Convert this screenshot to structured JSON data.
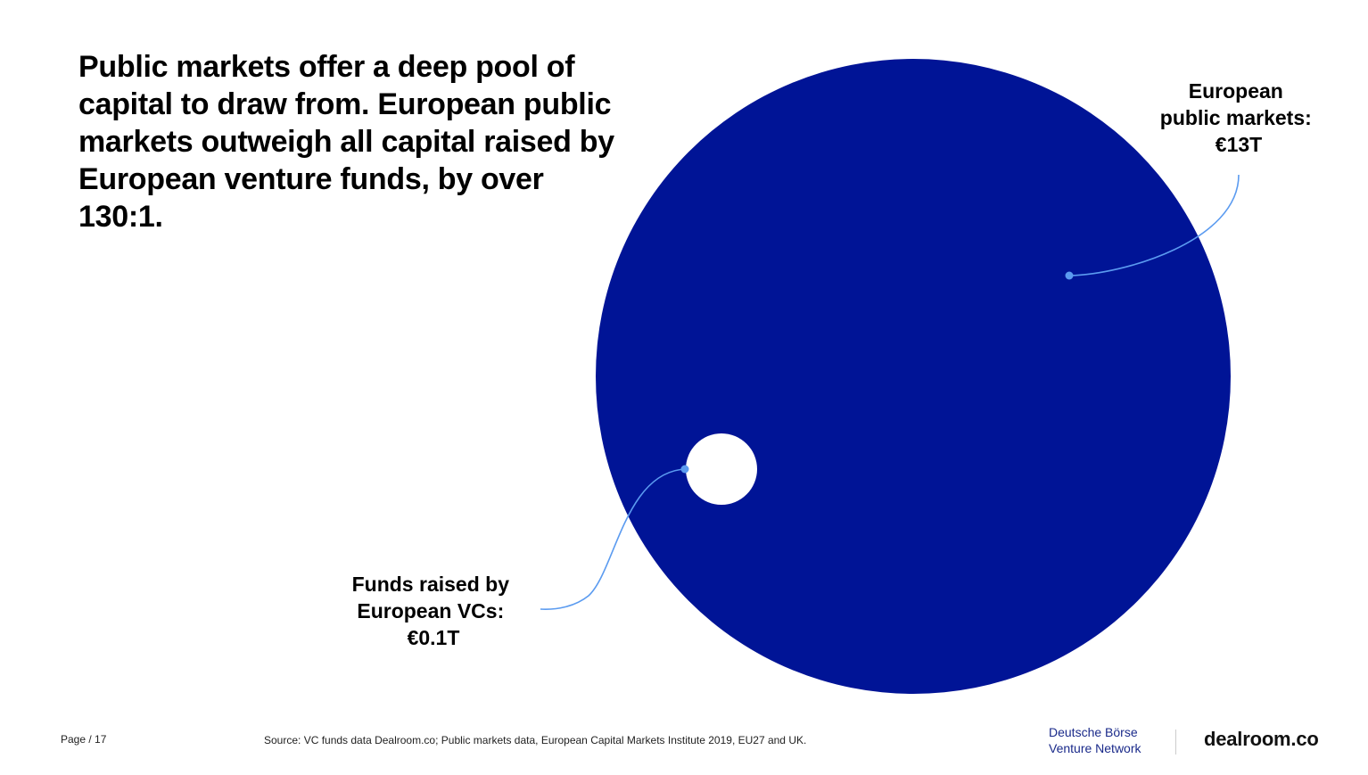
{
  "headline": "Public markets offer a deep pool of capital to draw from. European public markets outweigh all capital raised by European venture funds, by over 130:1.",
  "chart_data": {
    "type": "bubble",
    "unit": "€T",
    "series": [
      {
        "name": "European public markets",
        "value": 13,
        "label_lines": [
          "European",
          "public markets:",
          "€13T"
        ],
        "color": "#001496"
      },
      {
        "name": "Funds raised by European VCs",
        "value": 0.1,
        "label_lines": [
          "Funds raised by",
          "European VCs:",
          "€0.1T"
        ],
        "color": "#ffffff"
      }
    ],
    "connector_color": "#5b9bf0"
  },
  "footer": {
    "page": "Page / 17",
    "source": "Source: VC funds data Dealroom.co; Public markets data, European Capital Markets Institute 2019, EU27 and UK."
  },
  "logos": {
    "dbvn_line1": "Deutsche Börse",
    "dbvn_line2": "Venture Network",
    "dealroom": "dealroom.co"
  }
}
